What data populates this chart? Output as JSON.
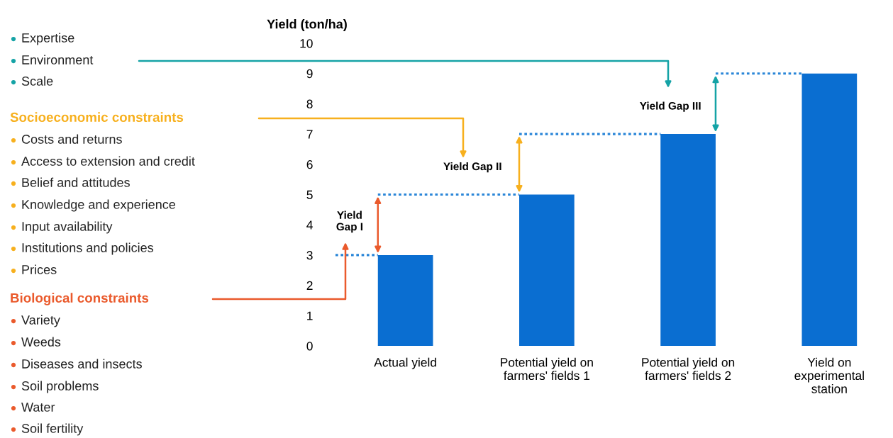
{
  "chart_data": {
    "type": "bar",
    "ylabel": "Yield (ton/ha)",
    "categories": [
      "Actual yield",
      "Potential yield on\nfarmers' fields 1",
      "Potential yield on\nfarmers' fields 2",
      "Yield on\nexperimental\nstation"
    ],
    "values": [
      3,
      5,
      7,
      9
    ],
    "color": "#0a6ed1",
    "ylim": [
      0,
      10
    ],
    "yticks": [
      0,
      1,
      2,
      3,
      4,
      5,
      6,
      7,
      8,
      9,
      10
    ],
    "grid": false,
    "annotations": [
      "Expertise",
      "Environment",
      "Scale",
      "Socioeconomic constraints",
      "Costs and returns",
      "Access to extension and credit",
      "Belief and attitudes",
      "Knowledge and experience",
      "Input availability",
      "Institutions and policies",
      "Prices",
      "Biological constraints",
      "Variety",
      "Weeds",
      "Diseases and insects",
      "Soil problems",
      "Water",
      "Soil fertility",
      "Yield\nGap I",
      "Yield Gap II",
      "Yield Gap III"
    ]
  }
}
